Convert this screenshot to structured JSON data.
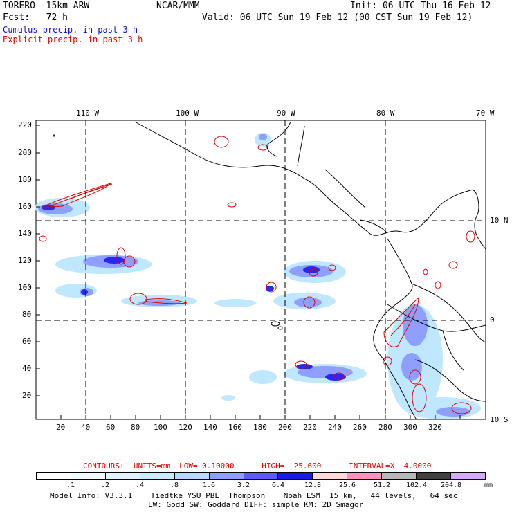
{
  "header": {
    "model": "TORERO  15km ARW",
    "org": "NCAR/MMM",
    "init": "Init: 06 UTC Thu 16 Feb 12",
    "fcst": "Fcst:   72 h",
    "valid": "Valid: 06 UTC Sun 19 Feb 12 (00 CST Sun 19 Feb 12)",
    "cumulus": "Cumulus precip. in past 3 h",
    "explicit": "Explicit precip. in past 3 h"
  },
  "map": {
    "lon_labels": [
      "110 W",
      "100 W",
      "90 W",
      "80 W",
      "70 W"
    ],
    "lat_labels": [
      "10 N",
      "0",
      "10 S"
    ],
    "x_ticks": [
      "20",
      "40",
      "60",
      "80",
      "100",
      "120",
      "140",
      "160",
      "180",
      "200",
      "220",
      "240",
      "260",
      "280",
      "300",
      "320"
    ],
    "y_ticks": [
      "220",
      "200",
      "180",
      "160",
      "140",
      "120",
      "100",
      "80",
      "60",
      "40",
      "20"
    ],
    "colors": {
      "cumulus_light": "#bfe8ff",
      "cumulus_mid": "#8f9fff",
      "cumulus_dark": "#2828f0",
      "explicit": "#e00000",
      "coast": "#000000"
    }
  },
  "legend": {
    "contours": "CONTOURS:  UNITS=mm  LOW= 0.10000      HIGH=  25.600      INTERVAL=X  4.0000",
    "labels": [
      ".1",
      ".2",
      ".4",
      ".8",
      "1.6",
      "3.2",
      "6.4",
      "12.8",
      "25.6",
      "51.2",
      "102.4",
      "204.8",
      "mm"
    ],
    "colors": [
      "#ffffff",
      "#f0faff",
      "#e0f4ff",
      "#c8ecff",
      "#b8d8ff",
      "#8f9fff",
      "#5a5aff",
      "#1818e8",
      "#ffd8d8",
      "#ff90c0",
      "#b8b8b8",
      "#404040",
      "#d8a8ff"
    ]
  },
  "footer": {
    "line1": "Model Info: V3.3.1    Tiedtke YSU PBL  Thompson    Noah LSM  15 km,   44 levels,   64 sec",
    "line2": "LW: Godd SW: Goddard DIFF: simple KM: 2D Smagor"
  }
}
